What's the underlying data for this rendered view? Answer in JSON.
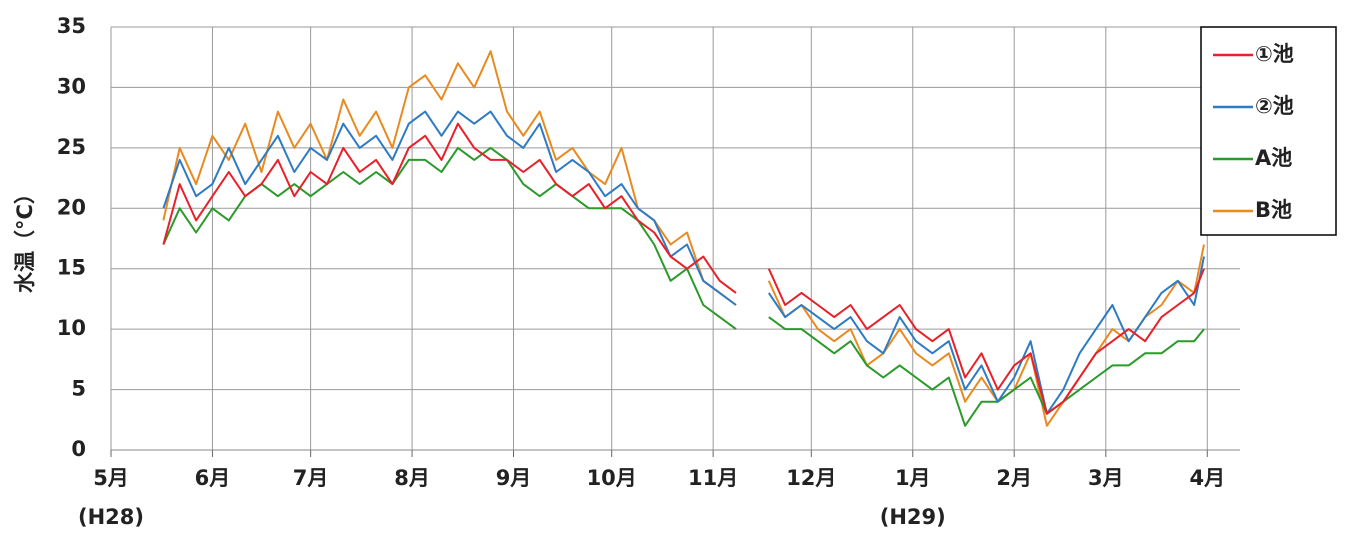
{
  "chart_data": {
    "type": "line",
    "y_label": "水温（°C）",
    "xlim": [
      0,
      345
    ],
    "xticks": [
      {
        "value": 0,
        "label": "5月"
      },
      {
        "value": 31,
        "label": "6月"
      },
      {
        "value": 61,
        "label": "7月"
      },
      {
        "value": 92,
        "label": "8月"
      },
      {
        "value": 123,
        "label": "9月"
      },
      {
        "value": 153,
        "label": "10月"
      },
      {
        "value": 184,
        "label": "11月"
      },
      {
        "value": 214,
        "label": "12月"
      },
      {
        "value": 245,
        "label": "1月"
      },
      {
        "value": 276,
        "label": "2月"
      },
      {
        "value": 304,
        "label": "3月"
      },
      {
        "value": 335,
        "label": "4月"
      }
    ],
    "x_sublabels": [
      {
        "value": 0,
        "label": "(H28)"
      },
      {
        "value": 245,
        "label": "(H29)"
      }
    ],
    "ylim": [
      0,
      35
    ],
    "yticks": [
      0,
      5,
      10,
      15,
      20,
      25,
      30,
      35
    ],
    "grid": true,
    "legend": "top-right",
    "x": [
      16,
      21,
      26,
      31,
      36,
      41,
      46,
      51,
      56,
      61,
      66,
      71,
      76,
      81,
      86,
      91,
      96,
      101,
      106,
      111,
      116,
      121,
      126,
      131,
      136,
      141,
      146,
      151,
      156,
      161,
      166,
      171,
      176,
      181,
      186,
      191,
      196,
      201,
      206,
      211,
      216,
      221,
      226,
      231,
      236,
      241,
      246,
      251,
      256,
      261,
      266,
      271,
      276,
      281,
      286,
      291,
      296,
      301,
      306,
      311,
      316,
      321,
      326,
      331,
      334
    ],
    "series": [
      {
        "name": "①池",
        "color": "#e8202a",
        "values": [
          17,
          22,
          19,
          21,
          23,
          21,
          22,
          24,
          21,
          23,
          22,
          25,
          23,
          24,
          22,
          25,
          26,
          24,
          27,
          25,
          24,
          24,
          23,
          24,
          22,
          21,
          22,
          20,
          21,
          19,
          18,
          16,
          15,
          16,
          14,
          13,
          null,
          15,
          12,
          13,
          12,
          11,
          12,
          10,
          11,
          12,
          10,
          9,
          10,
          6,
          8,
          5,
          7,
          8,
          3,
          4,
          6,
          8,
          9,
          10,
          9,
          11,
          12,
          13,
          15
        ]
      },
      {
        "name": "②池",
        "color": "#2e7bc4",
        "values": [
          20,
          24,
          21,
          22,
          25,
          22,
          24,
          26,
          23,
          25,
          24,
          27,
          25,
          26,
          24,
          27,
          28,
          26,
          28,
          27,
          28,
          26,
          25,
          27,
          23,
          24,
          23,
          21,
          22,
          20,
          19,
          16,
          17,
          14,
          13,
          12,
          null,
          13,
          11,
          12,
          11,
          10,
          11,
          9,
          8,
          11,
          9,
          8,
          9,
          5,
          7,
          4,
          6,
          9,
          3,
          5,
          8,
          10,
          12,
          9,
          11,
          13,
          14,
          12,
          16
        ]
      },
      {
        "name": "A池",
        "color": "#2a9a2a",
        "values": [
          17,
          20,
          18,
          20,
          19,
          21,
          22,
          21,
          22,
          21,
          22,
          23,
          22,
          23,
          22,
          24,
          24,
          23,
          25,
          24,
          25,
          24,
          22,
          21,
          22,
          21,
          20,
          20,
          20,
          19,
          17,
          14,
          15,
          12,
          11,
          10,
          null,
          11,
          10,
          10,
          9,
          8,
          9,
          7,
          6,
          7,
          6,
          5,
          6,
          2,
          4,
          4,
          5,
          6,
          3,
          4,
          5,
          6,
          7,
          7,
          8,
          8,
          9,
          9,
          10
        ]
      },
      {
        "name": "B池",
        "color": "#e88a20",
        "values": [
          19,
          25,
          22,
          26,
          24,
          27,
          23,
          28,
          25,
          27,
          24,
          29,
          26,
          28,
          25,
          30,
          31,
          29,
          32,
          30,
          33,
          28,
          26,
          28,
          24,
          25,
          23,
          22,
          25,
          20,
          19,
          17,
          18,
          14,
          13,
          12,
          null,
          14,
          11,
          12,
          10,
          9,
          10,
          7,
          8,
          10,
          8,
          7,
          8,
          4,
          6,
          4,
          5,
          8,
          2,
          4,
          6,
          8,
          10,
          9,
          11,
          12,
          14,
          13,
          17
        ]
      }
    ]
  }
}
